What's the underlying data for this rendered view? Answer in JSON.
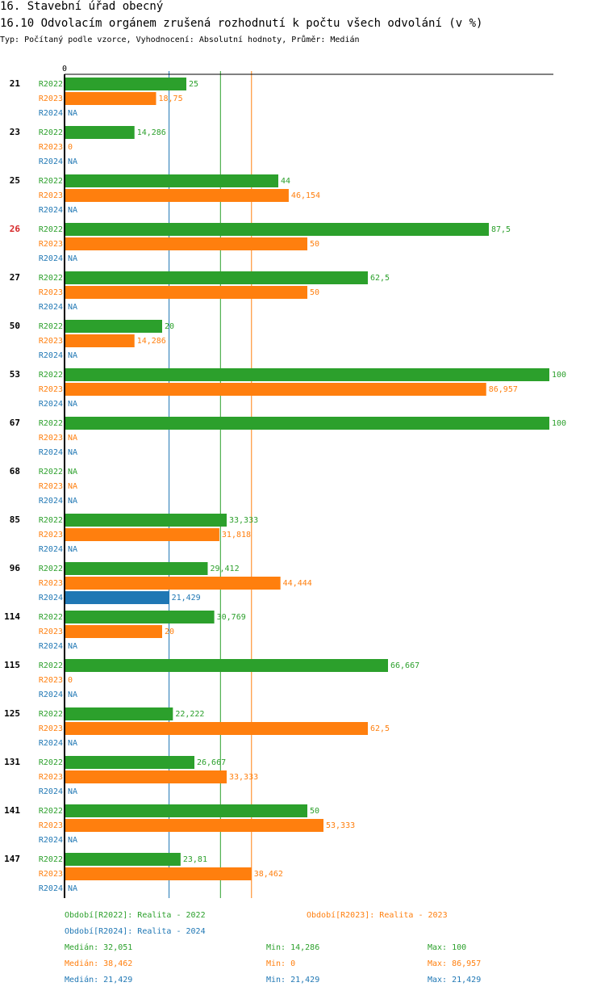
{
  "header": {
    "title": "16. Stavební úřad obecný",
    "subtitle": "16.10 Odvolacím orgánem zrušená rozhodnutí k počtu všech odvolání (v %)",
    "meta": "Typ: Počítaný podle vzorce, Vyhodnocení: Absolutní hodnoty, Průměr: Medián"
  },
  "colors": {
    "R2022": "#2ca02c",
    "R2023": "#ff7f0e",
    "R2024": "#1f77b4",
    "highlight": "#d62728"
  },
  "chart_data": {
    "type": "bar",
    "orientation": "horizontal",
    "title": "16.10 Odvolacím orgánem zrušená rozhodnutí k počtu všech odvolání (v %)",
    "xlim": [
      0,
      100
    ],
    "axis_tick_label": "0",
    "series_names": [
      "R2022",
      "R2023",
      "R2024"
    ],
    "highlight_category": "26",
    "groups": [
      {
        "label": "21",
        "values": [
          25,
          18.75,
          null
        ],
        "labels": [
          "25",
          "18,75",
          "NA"
        ]
      },
      {
        "label": "23",
        "values": [
          14.286,
          0,
          null
        ],
        "labels": [
          "14,286",
          "0",
          "NA"
        ]
      },
      {
        "label": "25",
        "values": [
          44,
          46.154,
          null
        ],
        "labels": [
          "44",
          "46,154",
          "NA"
        ]
      },
      {
        "label": "26",
        "values": [
          87.5,
          50,
          null
        ],
        "labels": [
          "87,5",
          "50",
          "NA"
        ]
      },
      {
        "label": "27",
        "values": [
          62.5,
          50,
          null
        ],
        "labels": [
          "62,5",
          "50",
          "NA"
        ]
      },
      {
        "label": "50",
        "values": [
          20,
          14.286,
          null
        ],
        "labels": [
          "20",
          "14,286",
          "NA"
        ]
      },
      {
        "label": "53",
        "values": [
          100,
          86.957,
          null
        ],
        "labels": [
          "100",
          "86,957",
          "NA"
        ]
      },
      {
        "label": "67",
        "values": [
          100,
          null,
          null
        ],
        "labels": [
          "100",
          "NA",
          "NA"
        ]
      },
      {
        "label": "68",
        "values": [
          null,
          null,
          null
        ],
        "labels": [
          "NA",
          "NA",
          "NA"
        ]
      },
      {
        "label": "85",
        "values": [
          33.333,
          31.818,
          null
        ],
        "labels": [
          "33,333",
          "31,818",
          "NA"
        ]
      },
      {
        "label": "96",
        "values": [
          29.412,
          44.444,
          21.429
        ],
        "labels": [
          "29,412",
          "44,444",
          "21,429"
        ]
      },
      {
        "label": "114",
        "values": [
          30.769,
          20,
          null
        ],
        "labels": [
          "30,769",
          "20",
          "NA"
        ]
      },
      {
        "label": "115",
        "values": [
          66.667,
          0,
          null
        ],
        "labels": [
          "66,667",
          "0",
          "NA"
        ]
      },
      {
        "label": "125",
        "values": [
          22.222,
          62.5,
          null
        ],
        "labels": [
          "22,222",
          "62,5",
          "NA"
        ]
      },
      {
        "label": "131",
        "values": [
          26.667,
          33.333,
          null
        ],
        "labels": [
          "26,667",
          "33,333",
          "NA"
        ]
      },
      {
        "label": "141",
        "values": [
          50,
          53.333,
          null
        ],
        "labels": [
          "50",
          "53,333",
          "NA"
        ]
      },
      {
        "label": "147",
        "values": [
          23.81,
          38.462,
          null
        ],
        "labels": [
          "23,81",
          "38,462",
          "NA"
        ]
      }
    ],
    "reference_lines": [
      {
        "series": "R2022",
        "value": 32.051
      },
      {
        "series": "R2023",
        "value": 38.462
      },
      {
        "series": "R2024",
        "value": 21.429
      }
    ]
  },
  "legend": {
    "period_2022": "Období[R2022]: Realita - 2022",
    "period_2023": "Období[R2023]: Realita - 2023",
    "period_2024": "Období[R2024]: Realita - 2024",
    "stats": [
      {
        "median": "Medián: 32,051",
        "min": "Min: 14,286",
        "max": "Max: 100"
      },
      {
        "median": "Medián: 38,462",
        "min": "Min: 0",
        "max": "Max: 86,957"
      },
      {
        "median": "Medián: 21,429",
        "min": "Min: 21,429",
        "max": "Max: 21,429"
      }
    ]
  }
}
